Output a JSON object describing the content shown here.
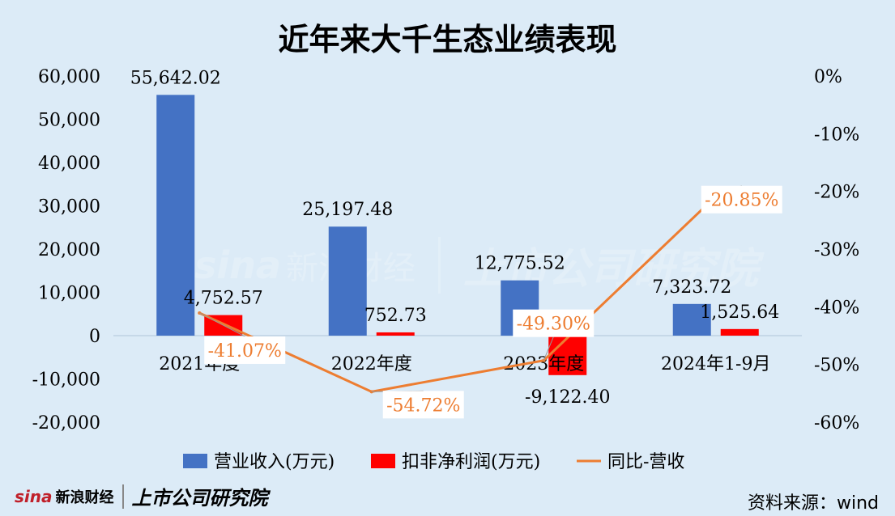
{
  "title": "近年来大千生态业绩表现",
  "source": "资料来源：wind",
  "logo": {
    "sina": "sina",
    "sina_cn": "新浪财经",
    "institute": "上市公司研究院"
  },
  "watermark": {
    "sina": "sina",
    "sina_cn": "新浪财经",
    "institute": "上市公司研究院"
  },
  "colors": {
    "background": "#dcebf7",
    "revenue": "#4472c4",
    "profit": "#ff0000",
    "growth": "#ed7d31"
  },
  "chart_data": {
    "type": "bar",
    "categories": [
      "2021年度",
      "2022年度",
      "2023年度",
      "2024年1-9月"
    ],
    "series": [
      {
        "name": "营业收入(万元)",
        "type": "bar",
        "axis": "left",
        "values": [
          55642.02,
          25197.48,
          12775.52,
          7323.72
        ],
        "labels": [
          "55,642.02",
          "25,197.48",
          "12,775.52",
          "7,323.72"
        ]
      },
      {
        "name": "扣非净利润(万元)",
        "type": "bar",
        "axis": "left",
        "values": [
          4752.57,
          752.73,
          -9122.4,
          1525.64
        ],
        "labels": [
          "4,752.57",
          "752.73",
          "-9,122.40",
          "1,525.64"
        ]
      },
      {
        "name": "同比-营收",
        "type": "line",
        "axis": "right",
        "values": [
          -41.07,
          -54.72,
          -49.3,
          -20.85
        ],
        "labels": [
          "-41.07%",
          "-54.72%",
          "-49.30%",
          "-20.85%"
        ]
      }
    ],
    "yleft": {
      "min": -20000,
      "max": 60000,
      "step": 10000,
      "ticks": [
        "60,000",
        "50,000",
        "40,000",
        "30,000",
        "20,000",
        "10,000",
        "0",
        "-10,000",
        "-20,000"
      ]
    },
    "yright": {
      "min": -60,
      "max": 0,
      "step": 10,
      "ticks": [
        "0%",
        "-10%",
        "-20%",
        "-30%",
        "-40%",
        "-50%",
        "-60%"
      ]
    },
    "legend_position": "bottom",
    "grid": false
  }
}
